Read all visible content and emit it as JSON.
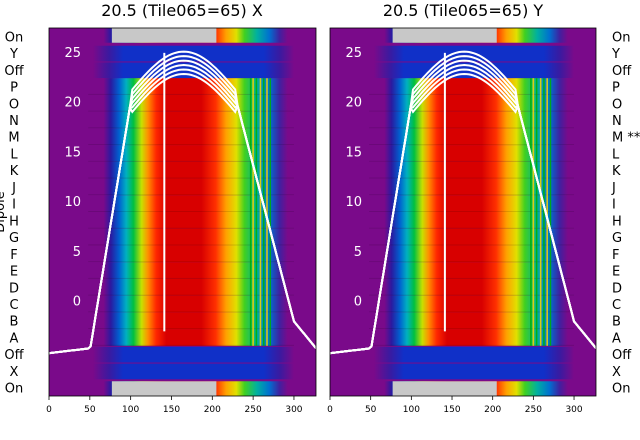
{
  "chart_data": [
    {
      "type": "heatmap",
      "title": "20.5 (Tile065=65) X",
      "ylabel": "Dipole",
      "rows": [
        "On",
        "Y",
        "Off",
        "P",
        "O",
        "N",
        "M",
        "L",
        "K",
        "J",
        "I",
        "H",
        "G",
        "F",
        "E",
        "D",
        "C",
        "B",
        "A",
        "Off",
        "X",
        "On"
      ],
      "row_notes": [
        "",
        "",
        "",
        "",
        "",
        "",
        "",
        "",
        "",
        "",
        "",
        "",
        "",
        "",
        "",
        "",
        "",
        "",
        "",
        "",
        "",
        ""
      ],
      "x_ticks": [
        0,
        50,
        100,
        150,
        200,
        250,
        300
      ],
      "xlim": [
        0,
        327
      ],
      "overlay_yticks": [
        0,
        5,
        10,
        15,
        20,
        25
      ],
      "overlay_ylim": [
        -9.5,
        27.5
      ],
      "grey_on_rows": true
    },
    {
      "type": "heatmap",
      "title": "20.5 (Tile065=65) Y",
      "rows": [
        "On",
        "Y",
        "Off",
        "P",
        "O",
        "N",
        "M",
        "L",
        "K",
        "J",
        "I",
        "H",
        "G",
        "F",
        "E",
        "D",
        "C",
        "B",
        "A",
        "Off",
        "X",
        "On"
      ],
      "row_notes": [
        "",
        "",
        "",
        "",
        "",
        "",
        "M **",
        "",
        "",
        "",
        "",
        "",
        "",
        "",
        "",
        "",
        "",
        "",
        "",
        "",
        "",
        ""
      ],
      "x_ticks": [
        0,
        50,
        100,
        150,
        200,
        250,
        300
      ],
      "xlim": [
        0,
        327
      ],
      "overlay_yticks": [
        0,
        5,
        10,
        15,
        20,
        25
      ],
      "overlay_ylim": [
        -9.5,
        27.5
      ],
      "grey_on_rows": true
    }
  ]
}
